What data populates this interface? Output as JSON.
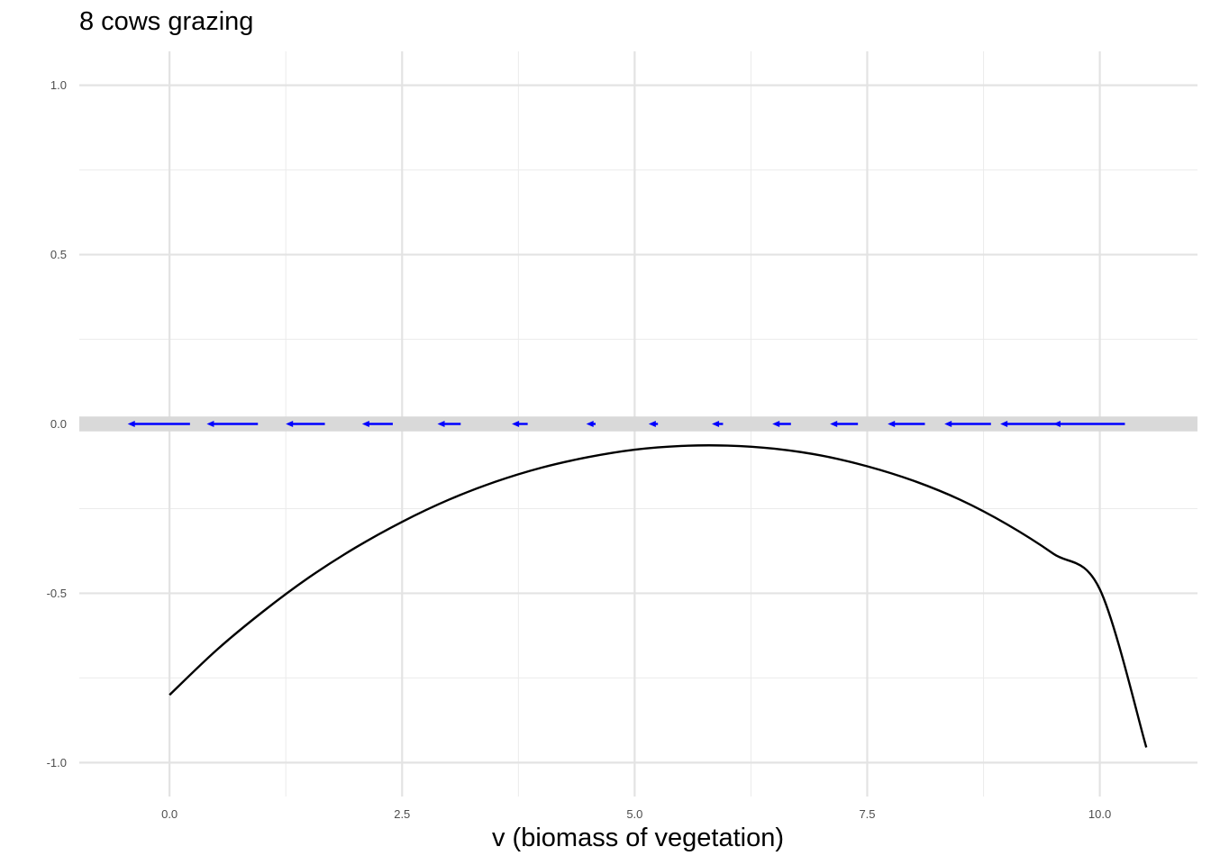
{
  "chart_data": {
    "type": "line",
    "title": "8 cows grazing",
    "xlabel": "v (biomass of vegetation)",
    "ylabel": "",
    "xlim": [
      -0.97,
      11.05
    ],
    "ylim": [
      -1.1,
      1.1
    ],
    "x_ticks": [
      0.0,
      2.5,
      5.0,
      7.5,
      10.0
    ],
    "x_tick_labels": [
      "0.0",
      "2.5",
      "5.0",
      "7.5",
      "10.0"
    ],
    "y_ticks": [
      -1.0,
      -0.5,
      0.0,
      0.5,
      1.0
    ],
    "y_tick_labels": [
      "-1.0",
      "-0.5",
      "0.0",
      "0.5",
      "1.0"
    ],
    "grid": true,
    "series": [
      {
        "kind": "curve",
        "color": "#000000",
        "x": [
          0.0,
          0.5,
          1.0,
          1.5,
          2.0,
          2.5,
          3.0,
          3.5,
          4.0,
          4.5,
          5.0,
          5.5,
          6.0,
          6.5,
          7.0,
          7.5,
          8.0,
          8.5,
          9.0,
          9.5,
          10.0,
          10.5
        ],
        "y": [
          -0.8,
          -0.669,
          -0.555,
          -0.453,
          -0.365,
          -0.289,
          -0.224,
          -0.171,
          -0.129,
          -0.098,
          -0.076,
          -0.065,
          -0.064,
          -0.073,
          -0.093,
          -0.125,
          -0.168,
          -0.224,
          -0.296,
          -0.383,
          -0.488,
          -0.955
        ]
      }
    ],
    "band": {
      "y_center": 0.0,
      "half_height": 0.022,
      "color": "#d9d9d9"
    },
    "arrows": {
      "color": "#0000ff",
      "direction": "left",
      "segments": [
        {
          "x_start": 0.22,
          "x_end": -0.45
        },
        {
          "x_start": 0.95,
          "x_end": 0.4
        },
        {
          "x_start": 1.67,
          "x_end": 1.25
        },
        {
          "x_start": 2.4,
          "x_end": 2.07
        },
        {
          "x_start": 3.13,
          "x_end": 2.88
        },
        {
          "x_start": 3.85,
          "x_end": 3.68
        },
        {
          "x_start": 4.58,
          "x_end": 4.48
        },
        {
          "x_start": 5.25,
          "x_end": 5.15
        },
        {
          "x_start": 5.95,
          "x_end": 5.83
        },
        {
          "x_start": 6.68,
          "x_end": 6.48
        },
        {
          "x_start": 7.4,
          "x_end": 7.1
        },
        {
          "x_start": 8.12,
          "x_end": 7.72
        },
        {
          "x_start": 8.83,
          "x_end": 8.33
        },
        {
          "x_start": 9.55,
          "x_end": 8.93
        },
        {
          "x_start": 10.27,
          "x_end": 9.5
        }
      ]
    }
  }
}
